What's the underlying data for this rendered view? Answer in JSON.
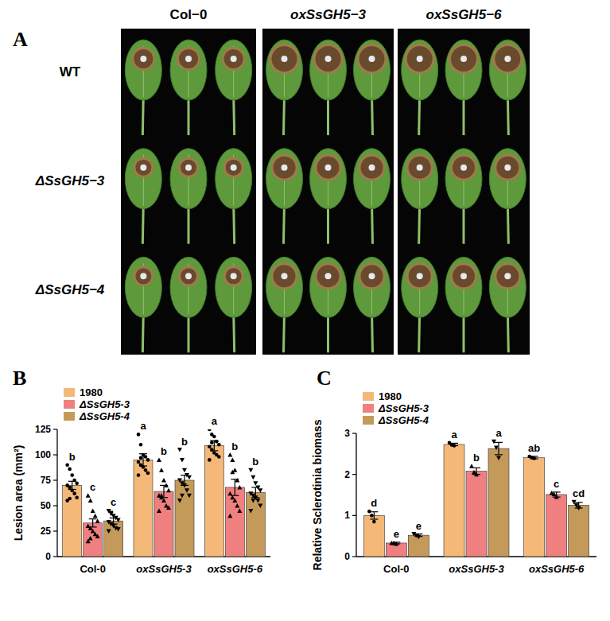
{
  "panel_a": {
    "label": "A",
    "columns": [
      "Col−0",
      "oxSsGH5−3",
      "oxSsGH5−6"
    ],
    "rows": [
      "WT",
      "ΔSsGH5−3",
      "ΔSsGH5−4"
    ]
  },
  "chart_data": [
    {
      "type": "bar",
      "panel_label": "B",
      "categories": [
        "Col-0",
        "oxSsGH5-3",
        "oxSsGH5-6"
      ],
      "y_label": "Lesion area (mm²)",
      "ylim": [
        0,
        125
      ],
      "yticks": [
        0,
        25,
        50,
        75,
        100,
        125
      ],
      "legend": "top-left",
      "series": [
        {
          "name": "1980",
          "color": "#f4b878",
          "marker": "circle",
          "values": [
            70,
            95,
            109
          ],
          "errors": [
            4,
            6,
            5
          ],
          "letters": [
            "b",
            "a",
            "a"
          ],
          "points": [
            [
              90,
              86,
              80,
              75,
              72,
              70,
              68,
              65,
              62,
              58,
              55,
              57
            ],
            [
              120,
              110,
              100,
              98,
              95,
              93,
              90,
              88,
              85,
              82,
              80,
              97
            ],
            [
              125,
              120,
              118,
              113,
              110,
              108,
              105,
              102,
              100,
              98,
              95,
              112
            ]
          ]
        },
        {
          "name": "ΔSsGH5-3",
          "color": "#f08080",
          "marker": "triangle",
          "values": [
            33,
            64,
            68
          ],
          "errors": [
            4,
            6,
            8
          ],
          "letters": [
            "c",
            "b",
            "b"
          ],
          "points": [
            [
              60,
              55,
              45,
              40,
              35,
              30,
              28,
              25,
              22,
              20,
              15,
              18
            ],
            [
              95,
              85,
              75,
              70,
              65,
              60,
              58,
              55,
              50,
              48,
              45,
              60
            ],
            [
              100,
              95,
              85,
              75,
              68,
              62,
              58,
              55,
              50,
              45,
              40,
              83
            ]
          ]
        },
        {
          "name": "ΔSsGH5-4",
          "color": "#c49a5a",
          "marker": "triangle-down",
          "values": [
            35,
            75,
            63
          ],
          "errors": [
            3,
            5,
            5
          ],
          "letters": [
            "c",
            "b",
            "b"
          ],
          "points": [
            [
              45,
              42,
              40,
              38,
              36,
              34,
              32,
              30,
              28,
              27,
              25,
              43
            ],
            [
              105,
              95,
              85,
              80,
              78,
              75,
              72,
              70,
              65,
              60,
              55,
              60
            ],
            [
              85,
              78,
              72,
              68,
              65,
              62,
              60,
              58,
              55,
              50,
              45,
              55
            ]
          ]
        }
      ]
    },
    {
      "type": "bar",
      "panel_label": "C",
      "categories": [
        "Col-0",
        "oxSsGH5-3",
        "oxSsGH5-6"
      ],
      "y_label": "Relative Sclerotinia biomass",
      "ylim": [
        0,
        3
      ],
      "yticks": [
        0,
        1,
        2,
        3
      ],
      "legend": "top-left",
      "series": [
        {
          "name": "1980",
          "color": "#f4b878",
          "marker": "circle",
          "values": [
            1.0,
            2.73,
            2.41
          ],
          "errors": [
            0.09,
            0.03,
            0.03
          ],
          "letters": [
            "d",
            "a",
            "ab"
          ],
          "points": [
            [
              1.1,
              1.0,
              0.85
            ],
            [
              2.77,
              2.72,
              2.7
            ],
            [
              2.44,
              2.41,
              2.39
            ]
          ]
        },
        {
          "name": "ΔSsGH5-3",
          "color": "#f08080",
          "marker": "triangle",
          "values": [
            0.33,
            2.08,
            1.51
          ],
          "errors": [
            0.02,
            0.08,
            0.06
          ],
          "letters": [
            "e",
            "b",
            "c"
          ],
          "points": [
            [
              0.33,
              0.33,
              0.31
            ],
            [
              2.2,
              2.05,
              2.0
            ],
            [
              1.55,
              1.52,
              1.45
            ]
          ]
        },
        {
          "name": "ΔSsGH5-4",
          "color": "#c49a5a",
          "marker": "triangle-down",
          "values": [
            0.52,
            2.63,
            1.25
          ],
          "errors": [
            0.03,
            0.15,
            0.07
          ],
          "letters": [
            "e",
            "a",
            "cd"
          ],
          "points": [
            [
              0.55,
              0.52,
              0.48
            ],
            [
              2.8,
              2.65,
              2.4
            ],
            [
              1.33,
              1.25,
              1.18
            ]
          ]
        }
      ]
    }
  ]
}
